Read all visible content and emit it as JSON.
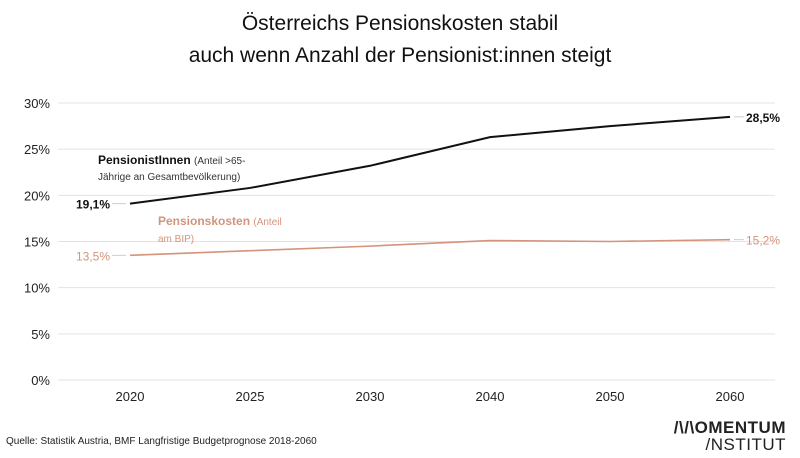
{
  "title_line1": "Österreichs Pensionskosten stabil",
  "title_line2": "auch wenn Anzahl der Pensionist:innen steigt",
  "source": "Quelle: Statistik Austria, BMF Langfristige Budgetprognose 2018-2060",
  "logo": {
    "line1": "/\\/\\OMENTUM",
    "line2": "/NSTITUT"
  },
  "chart_data": {
    "type": "line",
    "categories": [
      "2020",
      "2025",
      "2030",
      "2040",
      "2050",
      "2060"
    ],
    "ylim": [
      0,
      30
    ],
    "yticks": [
      0,
      5,
      10,
      15,
      20,
      25,
      30
    ],
    "ytick_labels": [
      "0%",
      "5%",
      "10%",
      "15%",
      "20%",
      "25%",
      "30%"
    ],
    "grid": true,
    "series": [
      {
        "name": "PensionistInnen",
        "note1": "(Anteil >65-",
        "note2": "Jährige an Gesamtbevölkerung)",
        "color": "#111111",
        "values": [
          19.1,
          20.8,
          23.2,
          26.3,
          27.5,
          28.5
        ],
        "start_label": "19,1%",
        "end_label": "28,5%"
      },
      {
        "name": "Pensionskosten",
        "note1": "(Anteil",
        "note2": "am BIP)",
        "color": "#d4937c",
        "values": [
          13.5,
          14.0,
          14.5,
          15.1,
          15.0,
          15.2
        ],
        "start_label": "13,5%",
        "end_label": "15,2%"
      }
    ]
  }
}
